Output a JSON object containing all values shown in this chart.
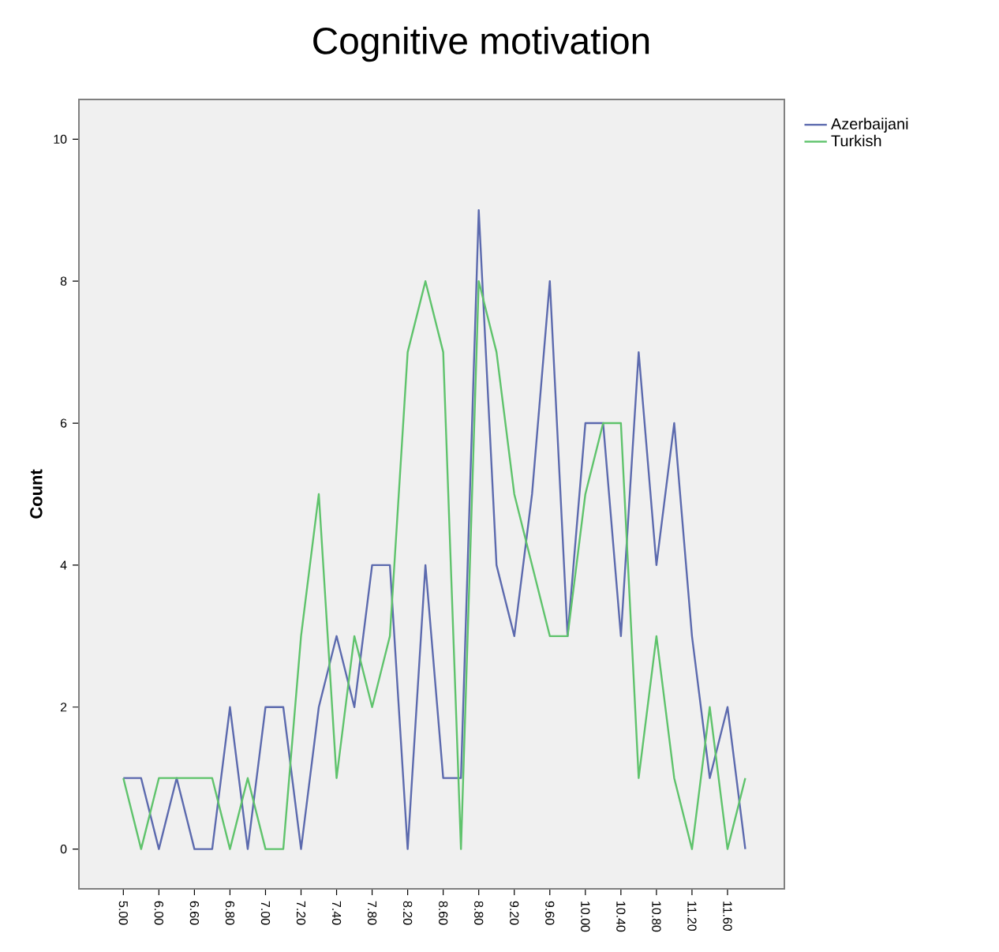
{
  "chart_data": {
    "type": "line",
    "title": "Cognitive motivation",
    "ylabel": "Count",
    "categories": [
      "5.00",
      null,
      "6.00",
      null,
      "6.60",
      null,
      "6.80",
      null,
      "7.00",
      null,
      "7.20",
      null,
      "7.40",
      null,
      "7.80",
      null,
      "8.20",
      null,
      "8.60",
      null,
      "8.80",
      null,
      "9.20",
      null,
      "9.60",
      null,
      "10.00",
      null,
      "10.40",
      null,
      "10.80",
      null,
      "11.20",
      null,
      "11.60",
      null
    ],
    "series": [
      {
        "name": "Azerbaijani",
        "color": "#5c6aae",
        "values": [
          1,
          1,
          0,
          1,
          0,
          0,
          2,
          0,
          2,
          2,
          0,
          2,
          3,
          2,
          4,
          4,
          0,
          4,
          1,
          1,
          9,
          4,
          3,
          5,
          8,
          3,
          6,
          6,
          3,
          7,
          4,
          6,
          3,
          1,
          2,
          0
        ]
      },
      {
        "name": "Turkish",
        "color": "#5fc36c",
        "values": [
          1,
          0,
          1,
          1,
          1,
          1,
          0,
          1,
          0,
          0,
          3,
          5,
          1,
          3,
          2,
          3,
          7,
          8,
          7,
          0,
          8,
          7,
          5,
          4,
          3,
          3,
          5,
          6,
          6,
          1,
          3,
          1,
          0,
          2,
          0,
          1
        ]
      }
    ],
    "ylim": [
      -0.56,
      10.56
    ],
    "yticks": [
      0,
      2,
      4,
      6,
      8,
      10
    ],
    "grid": false,
    "legend": "top right",
    "marker": "none",
    "line_style": "solid"
  }
}
